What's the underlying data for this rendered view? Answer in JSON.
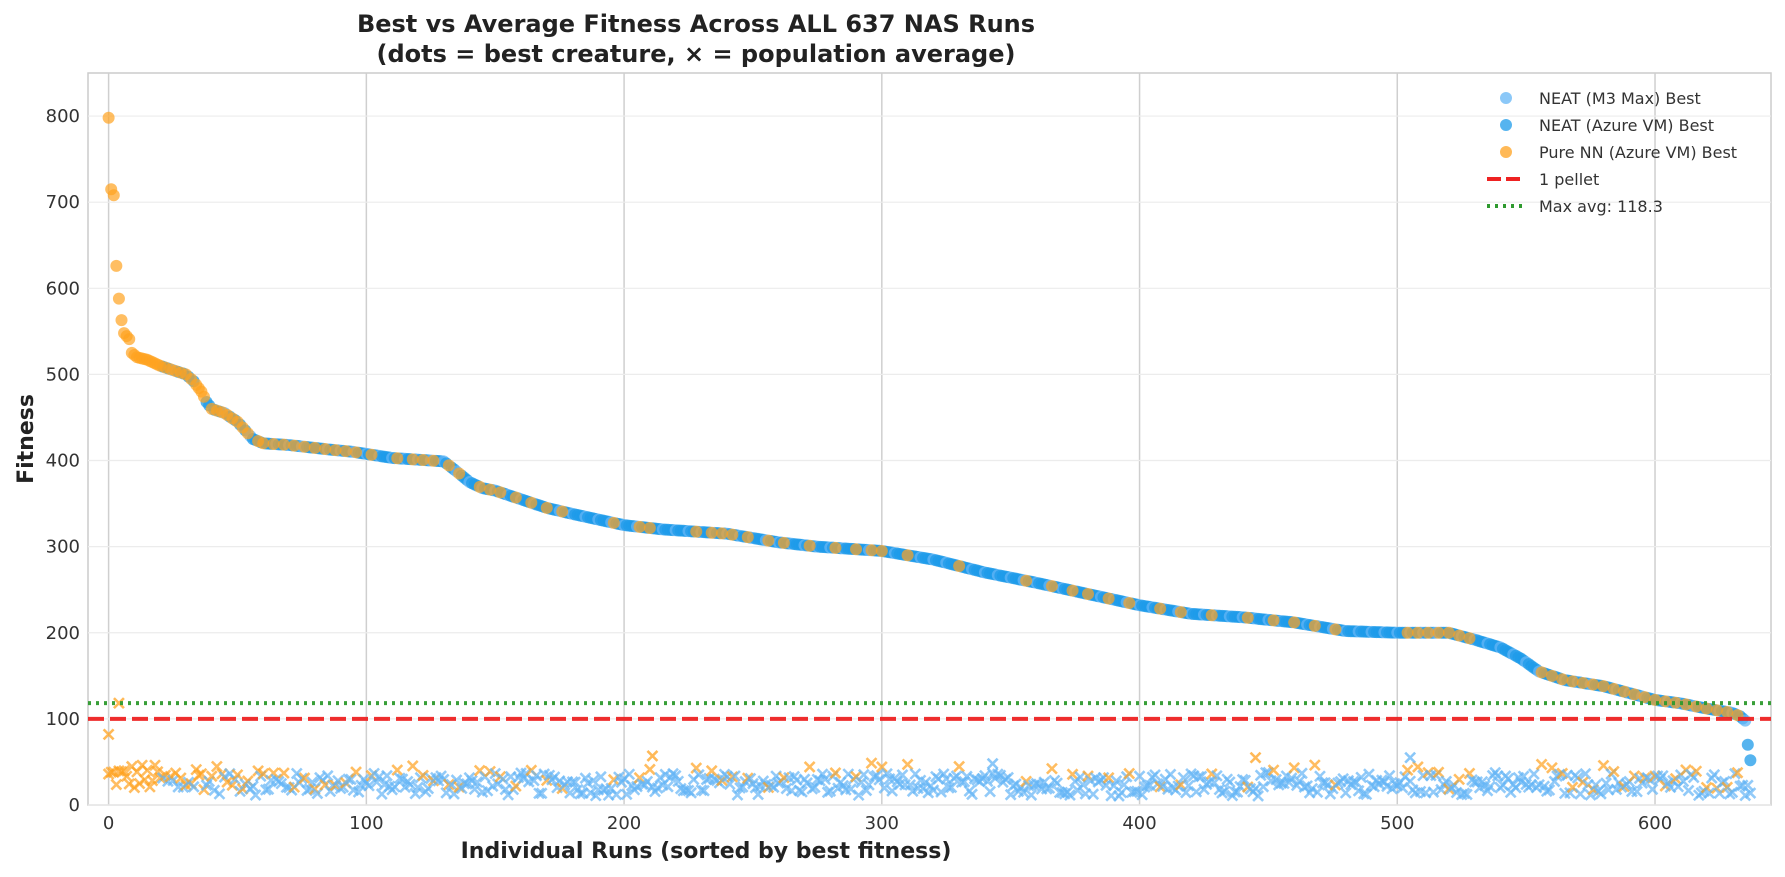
{
  "chart_data": {
    "type": "scatter",
    "title_line1": "Best vs Average Fitness Across ALL 637 NAS Runs",
    "title_line2": "(dots = best creature, × = population average)",
    "xlabel": "Individual Runs (sorted by best fitness)",
    "ylabel": "Fitness",
    "xlim": [
      -8,
      645
    ],
    "ylim": [
      0,
      850
    ],
    "xticks": [
      0,
      100,
      200,
      300,
      400,
      500,
      600
    ],
    "yticks": [
      0,
      100,
      200,
      300,
      400,
      500,
      600,
      700,
      800
    ],
    "grid": true,
    "legend_position": "top-right",
    "colors": {
      "neat_m3": "#64b5f6",
      "neat_azure": "#1e9bea",
      "pure_nn": "#ffa21f",
      "pellet": "#ee2222",
      "max_avg": "#2e9a2e"
    },
    "reference_lines": [
      {
        "name": "1 pellet",
        "y": 100,
        "style": "dashed",
        "color": "#ee2222"
      },
      {
        "name": "Max avg: 118.3",
        "y": 118.3,
        "style": "dotted",
        "color": "#2e9a2e"
      }
    ],
    "legend": [
      {
        "label": "NEAT (M3 Max) Best",
        "marker": "dot",
        "color": "#64b5f6"
      },
      {
        "label": "NEAT (Azure VM) Best",
        "marker": "dot",
        "color": "#1e9bea"
      },
      {
        "label": "Pure NN (Azure VM) Best",
        "marker": "dot",
        "color": "#ffa21f"
      },
      {
        "label": "1 pellet",
        "marker": "dashed",
        "color": "#ee2222"
      },
      {
        "label": "Max avg: 118.3",
        "marker": "dotted",
        "color": "#2e9a2e"
      }
    ],
    "best_curve_anchors": [
      [
        0,
        798
      ],
      [
        1,
        715
      ],
      [
        2,
        708
      ],
      [
        3,
        626
      ],
      [
        4,
        588
      ],
      [
        5,
        563
      ],
      [
        6,
        548
      ],
      [
        8,
        541
      ],
      [
        9,
        525
      ],
      [
        11,
        520
      ],
      [
        15,
        517
      ],
      [
        20,
        510
      ],
      [
        25,
        505
      ],
      [
        30,
        500
      ],
      [
        33,
        492
      ],
      [
        36,
        480
      ],
      [
        38,
        468
      ],
      [
        40,
        460
      ],
      [
        45,
        455
      ],
      [
        50,
        445
      ],
      [
        53,
        435
      ],
      [
        56,
        425
      ],
      [
        60,
        420
      ],
      [
        70,
        418
      ],
      [
        85,
        413
      ],
      [
        95,
        410
      ],
      [
        110,
        403
      ],
      [
        130,
        399
      ],
      [
        136,
        385
      ],
      [
        140,
        375
      ],
      [
        145,
        368
      ],
      [
        150,
        365
      ],
      [
        160,
        355
      ],
      [
        170,
        345
      ],
      [
        180,
        338
      ],
      [
        200,
        325
      ],
      [
        215,
        320
      ],
      [
        240,
        315
      ],
      [
        260,
        305
      ],
      [
        275,
        300
      ],
      [
        300,
        295
      ],
      [
        320,
        285
      ],
      [
        340,
        270
      ],
      [
        360,
        258
      ],
      [
        380,
        245
      ],
      [
        400,
        232
      ],
      [
        420,
        222
      ],
      [
        440,
        218
      ],
      [
        460,
        212
      ],
      [
        480,
        202
      ],
      [
        500,
        200
      ],
      [
        520,
        200
      ],
      [
        530,
        192
      ],
      [
        540,
        183
      ],
      [
        548,
        170
      ],
      [
        555,
        155
      ],
      [
        565,
        145
      ],
      [
        580,
        138
      ],
      [
        590,
        130
      ],
      [
        600,
        122
      ],
      [
        610,
        118
      ],
      [
        620,
        112
      ],
      [
        630,
        107
      ],
      [
        633,
        103
      ],
      [
        635,
        98
      ],
      [
        636,
        70
      ],
      [
        637,
        52
      ]
    ],
    "pure_nn_best_indices": [
      0,
      1,
      2,
      3,
      4,
      5,
      6,
      7,
      8,
      9,
      10,
      11,
      12,
      13,
      14,
      15,
      16,
      17,
      18,
      19,
      20,
      22,
      24,
      26,
      28,
      30,
      32,
      34,
      35,
      36,
      37,
      40,
      42,
      44,
      46,
      48,
      50,
      52,
      54,
      58,
      60,
      64,
      68,
      72,
      76,
      80,
      84,
      88,
      92,
      96,
      102,
      112,
      118,
      122,
      126,
      132,
      136,
      144,
      148,
      152,
      158,
      164,
      170,
      176,
      196,
      206,
      210,
      228,
      234,
      238,
      242,
      248,
      256,
      262,
      272,
      282,
      290,
      296,
      300,
      310,
      330,
      356,
      366,
      374,
      380,
      388,
      396,
      408,
      416,
      428,
      442,
      452,
      460,
      468,
      476,
      504,
      508,
      512,
      516,
      520,
      524,
      528,
      556,
      560,
      564,
      568,
      572,
      576,
      580,
      584,
      588,
      592,
      596,
      600,
      604,
      608,
      612,
      616,
      620,
      624,
      628,
      632
    ],
    "average_series": {
      "neat_typical_range": [
        10,
        45
      ],
      "pure_nn_typical_range": [
        15,
        58
      ],
      "notable_points": [
        {
          "x": 0,
          "y": 82,
          "group": "pure_nn"
        },
        {
          "x": 4,
          "y": 118.3,
          "group": "pure_nn"
        },
        {
          "x": 343,
          "y": 48,
          "group": "neat"
        },
        {
          "x": 445,
          "y": 55,
          "group": "pure_nn"
        },
        {
          "x": 505,
          "y": 55,
          "group": "neat"
        },
        {
          "x": 211,
          "y": 57,
          "group": "pure_nn"
        }
      ]
    }
  }
}
